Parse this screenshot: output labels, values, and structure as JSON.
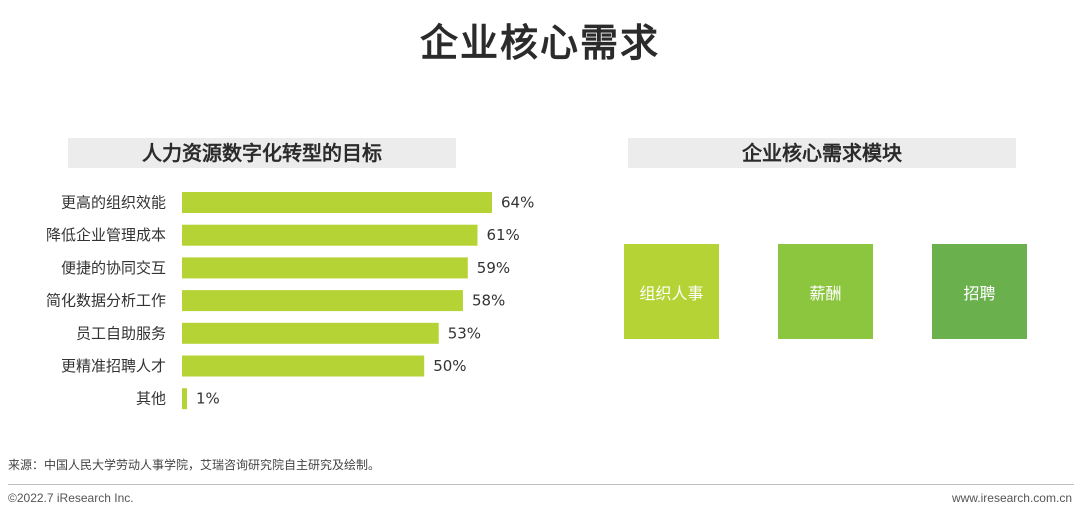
{
  "page": {
    "title": "企业核心需求"
  },
  "left_panel": {
    "header": "人力资源数字化转型的目标"
  },
  "chart_data": {
    "type": "bar",
    "orientation": "horizontal",
    "categories": [
      "更高的组织效能",
      "降低企业管理成本",
      "便捷的协同交互",
      "简化数据分析工作",
      "员工自助服务",
      "更精准招聘人才",
      "其他"
    ],
    "values": [
      64,
      61,
      59,
      58,
      53,
      50,
      1
    ],
    "value_labels": [
      "64%",
      "61%",
      "59%",
      "58%",
      "53%",
      "50%",
      "1%"
    ],
    "unit": "%",
    "xlim": [
      0,
      64
    ],
    "bar_color": "#b5d334",
    "grid": false,
    "legend": "none"
  },
  "right_panel": {
    "header": "企业核心需求模块",
    "modules": [
      {
        "label": "组织人事",
        "color": "#b5d334"
      },
      {
        "label": "薪酬",
        "color": "#8cc63e"
      },
      {
        "label": "招聘",
        "color": "#6ab04c"
      }
    ]
  },
  "footer": {
    "source": "来源：中国人民大学劳动人事学院，艾瑞咨询研究院自主研究及绘制。",
    "copyright": "©2022.7 iResearch Inc.",
    "website": "www.iresearch.com.cn"
  }
}
